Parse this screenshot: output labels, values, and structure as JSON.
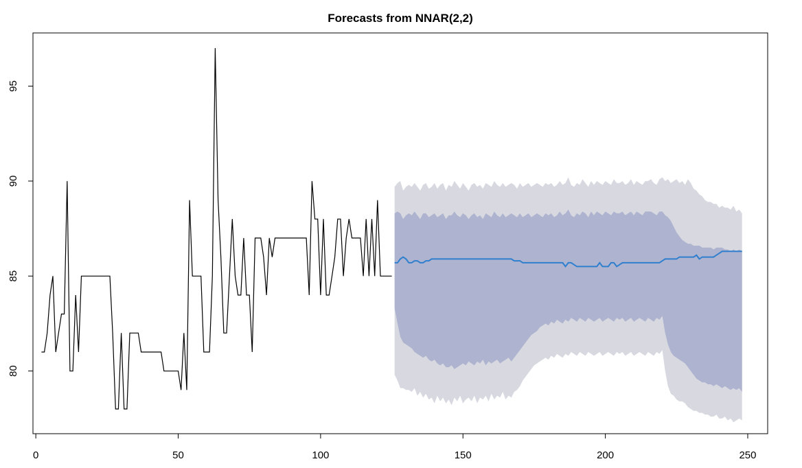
{
  "chart_data": {
    "type": "line",
    "title": "Forecasts from NNAR(2,2)",
    "xlabel": "",
    "ylabel": "",
    "xlim": [
      -1,
      257
    ],
    "ylim": [
      76.7,
      97.8
    ],
    "x_ticks": [
      0,
      50,
      100,
      150,
      200,
      250
    ],
    "y_ticks": [
      80,
      85,
      90,
      95
    ],
    "grid": false,
    "legend": "none",
    "colors": {
      "history": "#000000",
      "forecast": "#2f7fcf",
      "band80": "#aeb3cf",
      "band95": "#d8d9e0"
    },
    "series": [
      {
        "role": "history",
        "x_start": 2,
        "values": [
          81,
          81,
          82,
          84,
          85,
          81,
          82,
          83,
          83,
          90,
          80,
          80,
          84,
          81,
          85,
          85,
          85,
          85,
          85,
          85,
          85,
          85,
          85,
          85,
          85,
          82,
          78,
          78,
          82,
          78,
          78,
          82,
          82,
          82,
          82,
          81,
          81,
          81,
          81,
          81,
          81,
          81,
          81,
          80,
          80,
          80,
          80,
          80,
          80,
          79,
          82,
          79,
          89,
          85,
          85,
          85,
          85,
          81,
          81,
          81,
          85,
          97,
          89,
          86,
          82,
          82,
          85,
          88,
          85,
          84,
          84,
          87,
          84,
          84,
          81,
          87,
          87,
          87,
          86,
          84,
          87,
          86,
          87,
          87,
          87,
          87,
          87,
          87,
          87,
          87,
          87,
          87,
          87,
          87,
          84,
          90,
          88,
          88,
          84,
          88,
          84,
          84,
          85,
          86,
          88,
          88,
          85,
          87,
          88,
          87,
          87,
          87,
          87,
          85,
          88,
          85,
          88,
          85,
          89,
          85,
          85,
          85,
          85,
          85
        ]
      },
      {
        "role": "forecast",
        "x_start": 126,
        "values": [
          85.7,
          85.7,
          85.9,
          86.0,
          85.9,
          85.7,
          85.7,
          85.8,
          85.8,
          85.7,
          85.7,
          85.8,
          85.8,
          85.9,
          85.9,
          85.9,
          85.9,
          85.9,
          85.9,
          85.9,
          85.9,
          85.9,
          85.9,
          85.9,
          85.9,
          85.9,
          85.9,
          85.9,
          85.9,
          85.9,
          85.9,
          85.9,
          85.9,
          85.9,
          85.9,
          85.9,
          85.9,
          85.9,
          85.9,
          85.9,
          85.9,
          85.9,
          85.8,
          85.8,
          85.8,
          85.7,
          85.7,
          85.7,
          85.7,
          85.7,
          85.7,
          85.7,
          85.7,
          85.7,
          85.7,
          85.7,
          85.7,
          85.7,
          85.7,
          85.7,
          85.5,
          85.7,
          85.7,
          85.6,
          85.5,
          85.5,
          85.5,
          85.5,
          85.5,
          85.5,
          85.5,
          85.5,
          85.7,
          85.5,
          85.5,
          85.5,
          85.7,
          85.7,
          85.5,
          85.6,
          85.7,
          85.7,
          85.7,
          85.7,
          85.7,
          85.7,
          85.7,
          85.7,
          85.7,
          85.7,
          85.7,
          85.7,
          85.7,
          85.7,
          85.8,
          85.9,
          85.9,
          85.9,
          85.9,
          85.9,
          86.0,
          86.0,
          86.0,
          86.0,
          86.0,
          86.0,
          86.1,
          85.9,
          86.0,
          86.0,
          86.0,
          86.0,
          86.0,
          86.1,
          86.2,
          86.3,
          86.3,
          86.3,
          86.3,
          86.3,
          86.3,
          86.3,
          86.3
        ]
      }
    ],
    "intervals": {
      "x_start": 126,
      "hi95": [
        89.7,
        89.9,
        90.0,
        89.5,
        89.7,
        89.8,
        89.7,
        89.9,
        89.7,
        89.5,
        89.8,
        89.9,
        89.6,
        89.7,
        89.9,
        89.6,
        89.8,
        89.9,
        89.5,
        89.8,
        89.7,
        90.0,
        89.8,
        89.6,
        89.9,
        89.7,
        89.5,
        89.8,
        89.9,
        89.7,
        89.8,
        89.6,
        89.9,
        89.8,
        89.7,
        90.0,
        89.8,
        89.7,
        89.9,
        89.7,
        89.8,
        89.9,
        89.8,
        89.6,
        89.9,
        89.7,
        89.8,
        89.9,
        89.7,
        89.8,
        89.9,
        89.8,
        89.7,
        89.9,
        89.8,
        89.9,
        89.7,
        89.8,
        90.0,
        89.8,
        89.9,
        90.2,
        89.8,
        89.7,
        89.9,
        89.8,
        90.1,
        89.9,
        89.7,
        90.0,
        89.8,
        90.0,
        89.9,
        89.8,
        90.0,
        89.9,
        89.8,
        90.1,
        89.9,
        89.9,
        90.0,
        89.8,
        89.9,
        90.1,
        89.8,
        90.0,
        89.9,
        89.8,
        90.0,
        90.0,
        90.1,
        89.9,
        89.8,
        90.1,
        90.2,
        90.0,
        90.1,
        89.9,
        90.0,
        90.1,
        89.9,
        90.0,
        89.8,
        90.1,
        89.9,
        89.6,
        89.5,
        89.3,
        89.2,
        89.0,
        88.9,
        88.9,
        88.8,
        88.8,
        88.6,
        88.7,
        88.6,
        88.6,
        88.5,
        88.7,
        88.4,
        88.5,
        88.3
      ],
      "hi80": [
        88.3,
        88.4,
        88.3,
        88.0,
        88.2,
        88.3,
        88.2,
        88.4,
        88.2,
        88.0,
        88.3,
        88.3,
        88.1,
        88.2,
        88.3,
        88.1,
        88.2,
        88.3,
        88.0,
        88.2,
        88.2,
        88.4,
        88.2,
        88.1,
        88.3,
        88.2,
        88.0,
        88.2,
        88.3,
        88.1,
        88.2,
        88.0,
        88.3,
        88.2,
        88.1,
        88.4,
        88.2,
        88.1,
        88.3,
        88.1,
        88.2,
        88.3,
        88.2,
        88.1,
        88.3,
        88.1,
        88.2,
        88.3,
        88.1,
        88.2,
        88.3,
        88.2,
        88.1,
        88.3,
        88.2,
        88.3,
        88.1,
        88.2,
        88.4,
        88.2,
        88.3,
        88.5,
        88.2,
        88.1,
        88.3,
        88.2,
        88.4,
        88.3,
        88.1,
        88.4,
        88.2,
        88.4,
        88.3,
        88.2,
        88.4,
        88.3,
        88.2,
        88.4,
        88.3,
        88.3,
        88.4,
        88.2,
        88.3,
        88.4,
        88.2,
        88.4,
        88.3,
        88.2,
        88.4,
        88.4,
        88.4,
        88.3,
        88.2,
        88.4,
        88.4,
        88.2,
        88.1,
        87.9,
        87.6,
        87.3,
        87.1,
        86.9,
        86.8,
        86.7,
        86.7,
        86.6,
        86.6,
        86.6,
        86.5,
        86.5,
        86.5,
        86.5,
        86.4,
        86.5,
        86.5,
        86.5,
        86.4,
        86.4,
        86.3,
        86.4,
        86.3,
        86.4,
        86.3
      ],
      "lo80": [
        83.3,
        82.5,
        81.8,
        81.5,
        81.4,
        81.3,
        81.2,
        81.0,
        80.9,
        80.8,
        80.7,
        80.8,
        80.6,
        80.5,
        80.6,
        80.4,
        80.3,
        80.4,
        80.2,
        80.2,
        80.3,
        80.1,
        80.2,
        80.3,
        80.4,
        80.3,
        80.5,
        80.4,
        80.3,
        80.5,
        80.4,
        80.6,
        80.3,
        80.5,
        80.4,
        80.5,
        80.6,
        80.4,
        80.5,
        80.6,
        80.7,
        80.5,
        80.7,
        80.9,
        81.1,
        81.3,
        81.5,
        81.7,
        81.9,
        82.0,
        82.1,
        82.3,
        82.4,
        82.5,
        82.4,
        82.6,
        82.5,
        82.7,
        82.6,
        82.5,
        82.7,
        82.6,
        82.8,
        82.7,
        82.6,
        82.8,
        82.7,
        82.6,
        82.8,
        82.7,
        82.6,
        82.7,
        82.8,
        82.6,
        82.7,
        82.8,
        82.7,
        82.6,
        82.8,
        82.7,
        82.8,
        82.6,
        82.7,
        82.8,
        82.6,
        82.7,
        82.8,
        82.7,
        82.6,
        82.8,
        82.7,
        82.6,
        82.8,
        82.7,
        82.9,
        82.0,
        81.4,
        81.0,
        80.8,
        80.7,
        80.6,
        80.5,
        80.4,
        80.2,
        80.0,
        79.8,
        79.6,
        79.5,
        79.4,
        79.4,
        79.3,
        79.3,
        79.2,
        79.3,
        79.2,
        79.1,
        79.2,
        79.1,
        79.0,
        79.1,
        79.0,
        79.1,
        78.9
      ],
      "lo95": [
        79.8,
        79.5,
        79.1,
        79.1,
        79.0,
        79.0,
        78.9,
        79.1,
        78.7,
        78.9,
        78.6,
        78.8,
        78.5,
        78.6,
        78.3,
        78.7,
        78.4,
        78.6,
        78.3,
        78.5,
        78.2,
        78.6,
        78.4,
        78.7,
        78.3,
        78.5,
        78.6,
        78.4,
        78.7,
        78.3,
        78.6,
        78.5,
        78.7,
        78.4,
        78.8,
        78.5,
        78.7,
        78.6,
        78.9,
        78.5,
        78.7,
        78.6,
        78.9,
        79.0,
        79.2,
        79.5,
        79.7,
        79.9,
        80.1,
        80.3,
        80.4,
        80.5,
        80.6,
        80.7,
        80.6,
        80.8,
        80.7,
        80.9,
        80.8,
        80.7,
        80.9,
        80.8,
        81.0,
        80.9,
        80.8,
        81.0,
        80.9,
        80.8,
        81.0,
        80.9,
        80.8,
        80.9,
        81.0,
        80.8,
        80.9,
        81.0,
        80.9,
        80.8,
        81.0,
        80.9,
        81.0,
        80.8,
        80.9,
        81.0,
        80.8,
        80.9,
        81.0,
        80.9,
        80.8,
        81.0,
        80.9,
        80.8,
        81.0,
        80.9,
        81.1,
        80.0,
        79.2,
        78.8,
        78.7,
        78.5,
        78.4,
        78.4,
        78.3,
        78.1,
        78.0,
        77.9,
        77.9,
        77.8,
        77.8,
        77.7,
        77.7,
        77.6,
        77.6,
        77.7,
        77.5,
        77.5,
        77.6,
        77.4,
        77.5,
        77.3,
        77.4,
        77.5,
        77.4
      ]
    }
  }
}
